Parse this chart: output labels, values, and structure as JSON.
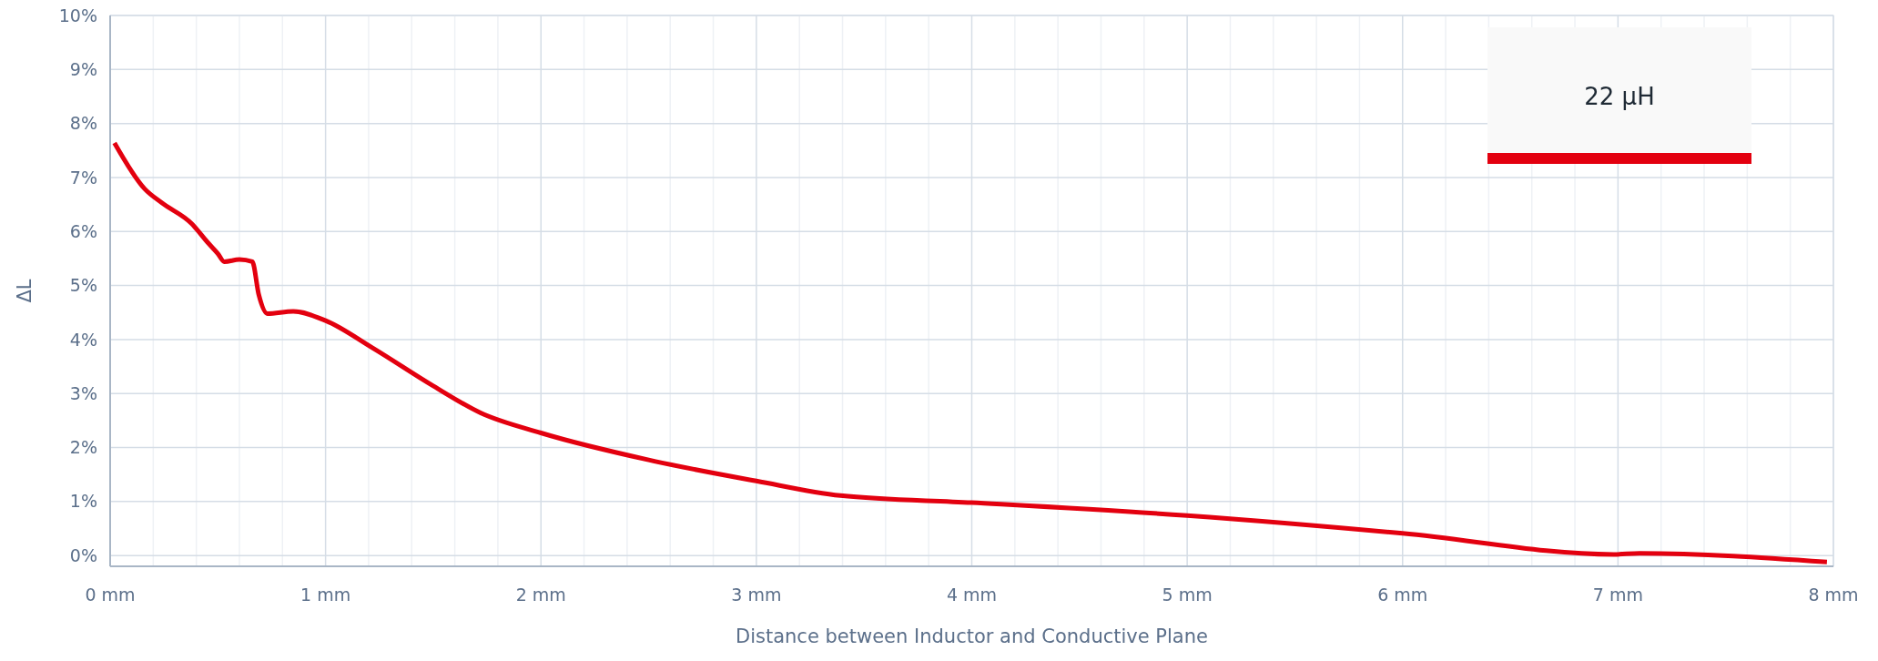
{
  "chart_data": {
    "type": "line",
    "xlabel": "Distance between Inductor and Conductive Plane",
    "ylabel": "ΔL",
    "xlim": [
      0,
      8
    ],
    "ylim": [
      -0.2,
      10
    ],
    "xticks": [
      {
        "value": 0,
        "label": "0 mm"
      },
      {
        "value": 0.2,
        "label": null
      },
      {
        "value": 0.4,
        "label": null
      },
      {
        "value": 0.6,
        "label": null
      },
      {
        "value": 0.8,
        "label": null
      },
      {
        "value": 1,
        "label": "1 mm"
      },
      {
        "value": 1.2,
        "label": null
      },
      {
        "value": 1.4,
        "label": null
      },
      {
        "value": 1.6,
        "label": null
      },
      {
        "value": 1.8,
        "label": null
      },
      {
        "value": 2,
        "label": "2 mm"
      },
      {
        "value": 2.2,
        "label": null
      },
      {
        "value": 2.4,
        "label": null
      },
      {
        "value": 2.6,
        "label": null
      },
      {
        "value": 2.8,
        "label": null
      },
      {
        "value": 3,
        "label": "3 mm"
      },
      {
        "value": 3.2,
        "label": null
      },
      {
        "value": 3.4,
        "label": null
      },
      {
        "value": 3.6,
        "label": null
      },
      {
        "value": 3.8,
        "label": null
      },
      {
        "value": 4,
        "label": "4 mm"
      },
      {
        "value": 4.2,
        "label": null
      },
      {
        "value": 4.4,
        "label": null
      },
      {
        "value": 4.6,
        "label": null
      },
      {
        "value": 4.8,
        "label": null
      },
      {
        "value": 5,
        "label": "5 mm"
      },
      {
        "value": 5.2,
        "label": null
      },
      {
        "value": 5.4,
        "label": null
      },
      {
        "value": 5.6,
        "label": null
      },
      {
        "value": 5.8,
        "label": null
      },
      {
        "value": 6,
        "label": "6 mm"
      },
      {
        "value": 6.2,
        "label": null
      },
      {
        "value": 6.4,
        "label": null
      },
      {
        "value": 6.6,
        "label": null
      },
      {
        "value": 6.8,
        "label": null
      },
      {
        "value": 7,
        "label": "7 mm"
      },
      {
        "value": 7.2,
        "label": null
      },
      {
        "value": 7.4,
        "label": null
      },
      {
        "value": 7.6,
        "label": null
      },
      {
        "value": 7.8,
        "label": null
      },
      {
        "value": 8,
        "label": "8 mm"
      }
    ],
    "yticks": [
      {
        "value": 0,
        "label": "0%"
      },
      {
        "value": 1,
        "label": "1%"
      },
      {
        "value": 2,
        "label": "2%"
      },
      {
        "value": 3,
        "label": "3%"
      },
      {
        "value": 4,
        "label": "4%"
      },
      {
        "value": 5,
        "label": "5%"
      },
      {
        "value": 6,
        "label": "6%"
      },
      {
        "value": 7,
        "label": "7%"
      },
      {
        "value": 8,
        "label": "8%"
      },
      {
        "value": 9,
        "label": "9%"
      },
      {
        "value": 10,
        "label": "10%"
      }
    ],
    "grid": true,
    "legend": "top right",
    "marker": "none",
    "line_style": "solid",
    "series": [
      {
        "name": "22 µH",
        "color": "#e3000f",
        "x": [
          0.02,
          0.16,
          0.24,
          0.38,
          0.45,
          0.5,
          0.53,
          0.6,
          0.66,
          0.69,
          0.73,
          0.85,
          1.0,
          1.22,
          1.5,
          1.72,
          2.0,
          2.5,
          3.0,
          3.39,
          4.0,
          5.0,
          6.0,
          6.98,
          7.1,
          7.97
        ],
        "values": [
          7.64,
          6.79,
          6.53,
          6.14,
          5.81,
          5.59,
          5.44,
          5.48,
          5.44,
          4.83,
          4.48,
          4.52,
          4.35,
          3.84,
          3.14,
          2.64,
          2.27,
          1.77,
          1.38,
          1.11,
          0.98,
          0.74,
          0.41,
          0.02,
          0.04,
          -0.12
        ]
      }
    ]
  }
}
